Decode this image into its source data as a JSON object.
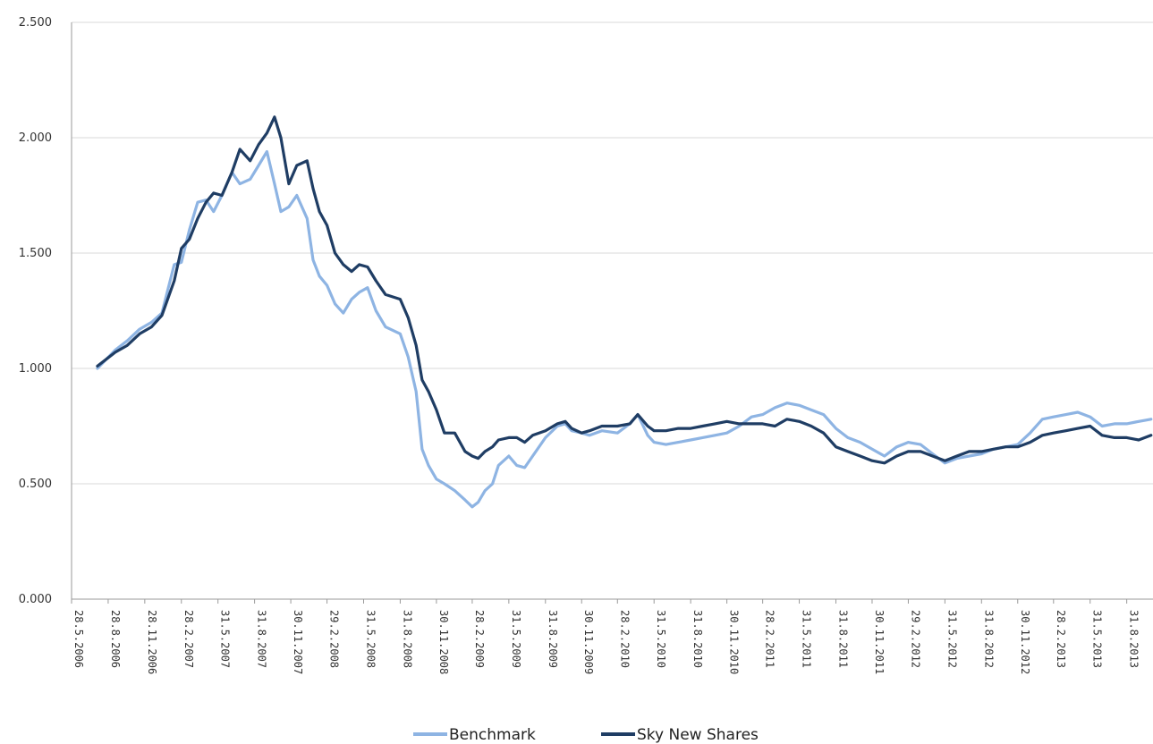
{
  "chart_data": {
    "type": "line",
    "title": "",
    "xlabel": "",
    "ylabel": "",
    "ylim": [
      0,
      2.5
    ],
    "y_ticks": [
      "0.000",
      "0.500",
      "1.000",
      "1.500",
      "2.000",
      "2.500"
    ],
    "x_tick_labels": [
      "28.5.2006",
      "28.8.2006",
      "28.11.2006",
      "28.2.2007",
      "31.5.2007",
      "31.8.2007",
      "30.11.2007",
      "29.2.2008",
      "31.5.2008",
      "31.8.2008",
      "30.11.2008",
      "28.2.2009",
      "31.5.2009",
      "31.8.2009",
      "30.11.2009",
      "28.2.2010",
      "31.5.2010",
      "31.8.2010",
      "30.11.2010",
      "28.2.2011",
      "31.5.2011",
      "31.8.2011",
      "30.11.2011",
      "29.2.2012",
      "31.5.2012",
      "31.8.2012",
      "30.11.2012",
      "28.2.2013",
      "31.5.2013",
      "31.8.2013"
    ],
    "grid": "horizontal",
    "legend_position": "bottom",
    "series": [
      {
        "name": "Benchmark",
        "color": "#8EB4E3",
        "points": [
          [
            "2006-08-01",
            1.0
          ],
          [
            "2006-09-15",
            1.08
          ],
          [
            "2006-10-15",
            1.12
          ],
          [
            "2006-11-15",
            1.17
          ],
          [
            "2006-12-15",
            1.2
          ],
          [
            "2007-01-10",
            1.24
          ],
          [
            "2007-02-10",
            1.45
          ],
          [
            "2007-02-28",
            1.46
          ],
          [
            "2007-03-20",
            1.6
          ],
          [
            "2007-04-10",
            1.72
          ],
          [
            "2007-05-01",
            1.73
          ],
          [
            "2007-05-20",
            1.68
          ],
          [
            "2007-06-10",
            1.75
          ],
          [
            "2007-07-05",
            1.85
          ],
          [
            "2007-07-25",
            1.8
          ],
          [
            "2007-08-20",
            1.82
          ],
          [
            "2007-09-10",
            1.88
          ],
          [
            "2007-10-01",
            1.94
          ],
          [
            "2007-10-20",
            1.8
          ],
          [
            "2007-11-05",
            1.68
          ],
          [
            "2007-11-25",
            1.7
          ],
          [
            "2007-12-15",
            1.75
          ],
          [
            "2008-01-10",
            1.65
          ],
          [
            "2008-01-25",
            1.47
          ],
          [
            "2008-02-10",
            1.4
          ],
          [
            "2008-02-29",
            1.36
          ],
          [
            "2008-03-20",
            1.28
          ],
          [
            "2008-04-10",
            1.24
          ],
          [
            "2008-05-01",
            1.3
          ],
          [
            "2008-05-20",
            1.33
          ],
          [
            "2008-06-10",
            1.35
          ],
          [
            "2008-07-01",
            1.25
          ],
          [
            "2008-07-25",
            1.18
          ],
          [
            "2008-08-31",
            1.15
          ],
          [
            "2008-09-20",
            1.05
          ],
          [
            "2008-10-10",
            0.9
          ],
          [
            "2008-10-25",
            0.65
          ],
          [
            "2008-11-10",
            0.58
          ],
          [
            "2008-11-30",
            0.52
          ],
          [
            "2008-12-20",
            0.5
          ],
          [
            "2009-01-15",
            0.47
          ],
          [
            "2009-02-10",
            0.43
          ],
          [
            "2009-02-28",
            0.4
          ],
          [
            "2009-03-15",
            0.42
          ],
          [
            "2009-04-01",
            0.47
          ],
          [
            "2009-04-20",
            0.5
          ],
          [
            "2009-05-05",
            0.58
          ],
          [
            "2009-05-31",
            0.62
          ],
          [
            "2009-06-20",
            0.58
          ],
          [
            "2009-07-10",
            0.57
          ],
          [
            "2009-07-30",
            0.62
          ],
          [
            "2009-08-31",
            0.7
          ],
          [
            "2009-09-30",
            0.75
          ],
          [
            "2009-10-20",
            0.76
          ],
          [
            "2009-11-05",
            0.73
          ],
          [
            "2009-11-30",
            0.72
          ],
          [
            "2009-12-20",
            0.71
          ],
          [
            "2010-01-20",
            0.73
          ],
          [
            "2010-02-28",
            0.72
          ],
          [
            "2010-03-31",
            0.76
          ],
          [
            "2010-04-20",
            0.8
          ],
          [
            "2010-05-15",
            0.71
          ],
          [
            "2010-05-31",
            0.68
          ],
          [
            "2010-06-30",
            0.67
          ],
          [
            "2010-07-31",
            0.68
          ],
          [
            "2010-08-31",
            0.69
          ],
          [
            "2010-09-30",
            0.7
          ],
          [
            "2010-10-31",
            0.71
          ],
          [
            "2010-11-30",
            0.72
          ],
          [
            "2010-12-31",
            0.75
          ],
          [
            "2011-01-31",
            0.79
          ],
          [
            "2011-02-28",
            0.8
          ],
          [
            "2011-03-31",
            0.83
          ],
          [
            "2011-04-30",
            0.85
          ],
          [
            "2011-05-31",
            0.84
          ],
          [
            "2011-06-30",
            0.82
          ],
          [
            "2011-07-31",
            0.8
          ],
          [
            "2011-08-31",
            0.74
          ],
          [
            "2011-09-30",
            0.7
          ],
          [
            "2011-10-31",
            0.68
          ],
          [
            "2011-11-30",
            0.65
          ],
          [
            "2011-12-31",
            0.62
          ],
          [
            "2012-01-31",
            0.66
          ],
          [
            "2012-02-29",
            0.68
          ],
          [
            "2012-03-31",
            0.67
          ],
          [
            "2012-04-30",
            0.63
          ],
          [
            "2012-05-31",
            0.59
          ],
          [
            "2012-06-30",
            0.61
          ],
          [
            "2012-07-31",
            0.62
          ],
          [
            "2012-08-31",
            0.63
          ],
          [
            "2012-09-30",
            0.65
          ],
          [
            "2012-10-31",
            0.66
          ],
          [
            "2012-11-30",
            0.67
          ],
          [
            "2012-12-31",
            0.72
          ],
          [
            "2013-01-31",
            0.78
          ],
          [
            "2013-02-28",
            0.79
          ],
          [
            "2013-03-31",
            0.8
          ],
          [
            "2013-04-30",
            0.81
          ],
          [
            "2013-05-31",
            0.79
          ],
          [
            "2013-06-30",
            0.75
          ],
          [
            "2013-07-31",
            0.76
          ],
          [
            "2013-08-31",
            0.76
          ],
          [
            "2013-09-30",
            0.77
          ],
          [
            "2013-10-31",
            0.78
          ]
        ]
      },
      {
        "name": "Sky New Shares",
        "color": "#1F3D64",
        "points": [
          [
            "2006-08-01",
            1.01
          ],
          [
            "2006-09-15",
            1.07
          ],
          [
            "2006-10-15",
            1.1
          ],
          [
            "2006-11-15",
            1.15
          ],
          [
            "2006-12-15",
            1.18
          ],
          [
            "2007-01-10",
            1.23
          ],
          [
            "2007-02-10",
            1.38
          ],
          [
            "2007-02-28",
            1.52
          ],
          [
            "2007-03-20",
            1.56
          ],
          [
            "2007-04-10",
            1.65
          ],
          [
            "2007-05-01",
            1.72
          ],
          [
            "2007-05-20",
            1.76
          ],
          [
            "2007-06-10",
            1.75
          ],
          [
            "2007-07-05",
            1.85
          ],
          [
            "2007-07-25",
            1.95
          ],
          [
            "2007-08-20",
            1.9
          ],
          [
            "2007-09-10",
            1.97
          ],
          [
            "2007-10-01",
            2.02
          ],
          [
            "2007-10-20",
            2.09
          ],
          [
            "2007-11-05",
            2.0
          ],
          [
            "2007-11-25",
            1.8
          ],
          [
            "2007-12-15",
            1.88
          ],
          [
            "2008-01-10",
            1.9
          ],
          [
            "2008-01-25",
            1.78
          ],
          [
            "2008-02-10",
            1.68
          ],
          [
            "2008-02-29",
            1.62
          ],
          [
            "2008-03-20",
            1.5
          ],
          [
            "2008-04-10",
            1.45
          ],
          [
            "2008-05-01",
            1.42
          ],
          [
            "2008-05-20",
            1.45
          ],
          [
            "2008-06-10",
            1.44
          ],
          [
            "2008-07-01",
            1.38
          ],
          [
            "2008-07-25",
            1.32
          ],
          [
            "2008-08-31",
            1.3
          ],
          [
            "2008-09-20",
            1.22
          ],
          [
            "2008-10-10",
            1.1
          ],
          [
            "2008-10-25",
            0.95
          ],
          [
            "2008-11-10",
            0.9
          ],
          [
            "2008-11-30",
            0.82
          ],
          [
            "2008-12-20",
            0.72
          ],
          [
            "2009-01-15",
            0.72
          ],
          [
            "2009-02-10",
            0.64
          ],
          [
            "2009-02-28",
            0.62
          ],
          [
            "2009-03-15",
            0.61
          ],
          [
            "2009-04-01",
            0.64
          ],
          [
            "2009-04-20",
            0.66
          ],
          [
            "2009-05-05",
            0.69
          ],
          [
            "2009-05-31",
            0.7
          ],
          [
            "2009-06-20",
            0.7
          ],
          [
            "2009-07-10",
            0.68
          ],
          [
            "2009-07-30",
            0.71
          ],
          [
            "2009-08-31",
            0.73
          ],
          [
            "2009-09-30",
            0.76
          ],
          [
            "2009-10-20",
            0.77
          ],
          [
            "2009-11-05",
            0.74
          ],
          [
            "2009-11-30",
            0.72
          ],
          [
            "2009-12-20",
            0.73
          ],
          [
            "2010-01-20",
            0.75
          ],
          [
            "2010-02-28",
            0.75
          ],
          [
            "2010-03-31",
            0.76
          ],
          [
            "2010-04-20",
            0.8
          ],
          [
            "2010-05-15",
            0.75
          ],
          [
            "2010-05-31",
            0.73
          ],
          [
            "2010-06-30",
            0.73
          ],
          [
            "2010-07-31",
            0.74
          ],
          [
            "2010-08-31",
            0.74
          ],
          [
            "2010-09-30",
            0.75
          ],
          [
            "2010-10-31",
            0.76
          ],
          [
            "2010-11-30",
            0.77
          ],
          [
            "2010-12-31",
            0.76
          ],
          [
            "2011-01-31",
            0.76
          ],
          [
            "2011-02-28",
            0.76
          ],
          [
            "2011-03-31",
            0.75
          ],
          [
            "2011-04-30",
            0.78
          ],
          [
            "2011-05-31",
            0.77
          ],
          [
            "2011-06-30",
            0.75
          ],
          [
            "2011-07-31",
            0.72
          ],
          [
            "2011-08-31",
            0.66
          ],
          [
            "2011-09-30",
            0.64
          ],
          [
            "2011-10-31",
            0.62
          ],
          [
            "2011-11-30",
            0.6
          ],
          [
            "2011-12-31",
            0.59
          ],
          [
            "2012-01-31",
            0.62
          ],
          [
            "2012-02-29",
            0.64
          ],
          [
            "2012-03-31",
            0.64
          ],
          [
            "2012-04-30",
            0.62
          ],
          [
            "2012-05-31",
            0.6
          ],
          [
            "2012-06-30",
            0.62
          ],
          [
            "2012-07-31",
            0.64
          ],
          [
            "2012-08-31",
            0.64
          ],
          [
            "2012-09-30",
            0.65
          ],
          [
            "2012-10-31",
            0.66
          ],
          [
            "2012-11-30",
            0.66
          ],
          [
            "2012-12-31",
            0.68
          ],
          [
            "2013-01-31",
            0.71
          ],
          [
            "2013-02-28",
            0.72
          ],
          [
            "2013-03-31",
            0.73
          ],
          [
            "2013-04-30",
            0.74
          ],
          [
            "2013-05-31",
            0.75
          ],
          [
            "2013-06-30",
            0.71
          ],
          [
            "2013-07-31",
            0.7
          ],
          [
            "2013-08-31",
            0.7
          ],
          [
            "2013-09-30",
            0.69
          ],
          [
            "2013-10-31",
            0.71
          ]
        ]
      }
    ]
  }
}
